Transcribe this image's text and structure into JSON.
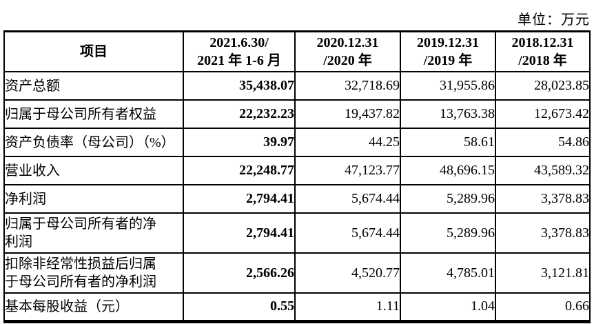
{
  "page": {
    "unit_label": "单位：万元"
  },
  "table": {
    "columns": [
      "项目",
      "2021.6.30/\n2021 年 1-6 月",
      "2020.12.31\n/2020 年",
      "2019.12.31\n/2019 年",
      "2018.12.31\n/2018 年"
    ],
    "rows": [
      {
        "label": "资产总额",
        "values": [
          "35,438.07",
          "32,718.69",
          "31,955.86",
          "28,023.85"
        ]
      },
      {
        "label": "归属于母公司所有者权益",
        "values": [
          "22,232.23",
          "19,437.82",
          "13,763.38",
          "12,673.42"
        ]
      },
      {
        "label": "资产负债率（母公司）（%）",
        "values": [
          "39.97",
          "44.25",
          "58.61",
          "54.86"
        ]
      },
      {
        "label": "营业收入",
        "values": [
          "22,248.77",
          "47,123.77",
          "48,696.15",
          "43,589.32"
        ]
      },
      {
        "label": "净利润",
        "values": [
          "2,794.41",
          "5,674.44",
          "5,289.96",
          "3,378.83"
        ]
      },
      {
        "label": "归属于母公司所有者的净\n利润",
        "values": [
          "2,794.41",
          "5,674.44",
          "5,289.96",
          "3,378.83"
        ]
      },
      {
        "label": "扣除非经常性损益后归属\n于母公司所有者的净利润",
        "values": [
          "2,566.26",
          "4,520.77",
          "4,785.01",
          "3,121.81"
        ]
      },
      {
        "label": "基本每股收益（元）",
        "values": [
          "0.55",
          "1.11",
          "1.04",
          "0.66"
        ]
      }
    ]
  }
}
